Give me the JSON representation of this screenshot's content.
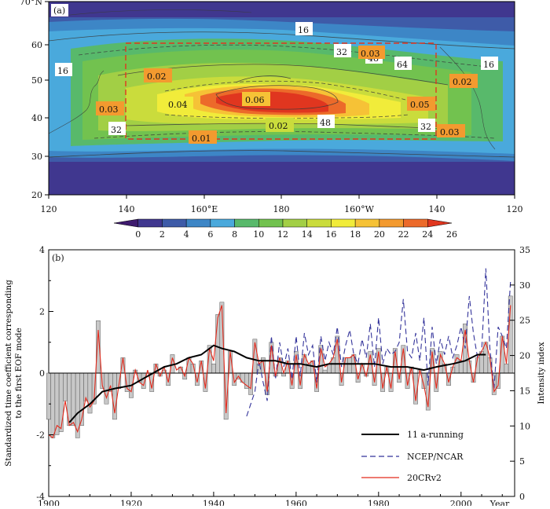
{
  "panel_a": {
    "label": "(a)",
    "lat_labels": [
      "70°N",
      "60",
      "50",
      "40",
      "30",
      "20"
    ],
    "lon_labels": [
      "120",
      "140",
      "160°E",
      "180",
      "160°W",
      "140",
      "120"
    ],
    "colorbar_ticks": [
      "0",
      "2",
      "4",
      "6",
      "8",
      "10",
      "12",
      "14",
      "16",
      "18",
      "20",
      "22",
      "24",
      "26"
    ],
    "contour_labels": [
      "16",
      "32",
      "48",
      "64",
      "16",
      "16",
      "48",
      "32",
      "32"
    ],
    "eof_labels": [
      "0.03",
      "0.02",
      "0.03",
      "0.04",
      "0.06",
      "0.02",
      "0.01",
      "0.05",
      "0.02",
      "0.03"
    ]
  },
  "chart_data": {
    "type": "line",
    "title": "",
    "panel_label": "(b)",
    "xlabel": "Year",
    "ylabel_left": "Standardized time coefficient corresponding to the first EOF mode",
    "ylabel_right": "Intensity index",
    "xlim": [
      1900,
      2013
    ],
    "ylim": [
      -4,
      4
    ],
    "ylim_right": [
      0,
      35
    ],
    "x_ticks": [
      "1900",
      "1920",
      "1940",
      "1960",
      "1980",
      "2000"
    ],
    "y_ticks": [
      "-4",
      "-2",
      "0",
      "2",
      "4"
    ],
    "y_right_ticks": [
      "0",
      "5",
      "10",
      "15",
      "20",
      "25",
      "30",
      "35"
    ],
    "x_unit_label": "Year",
    "legend_position": "bottom-right",
    "bar_series": {
      "name": "Standardized time coefficient",
      "x": [
        1900,
        1901,
        1902,
        1903,
        1904,
        1905,
        1906,
        1907,
        1908,
        1909,
        1910,
        1911,
        1912,
        1913,
        1914,
        1915,
        1916,
        1917,
        1918,
        1919,
        1920,
        1921,
        1922,
        1923,
        1924,
        1925,
        1926,
        1927,
        1928,
        1929,
        1930,
        1931,
        1932,
        1933,
        1934,
        1935,
        1936,
        1937,
        1938,
        1939,
        1940,
        1941,
        1942,
        1943,
        1944,
        1945,
        1946,
        1947,
        1948,
        1949,
        1950,
        1951,
        1952,
        1953,
        1954,
        1955,
        1956,
        1957,
        1958,
        1959,
        1960,
        1961,
        1962,
        1963,
        1964,
        1965,
        1966,
        1967,
        1968,
        1969,
        1970,
        1971,
        1972,
        1973,
        1974,
        1975,
        1976,
        1977,
        1978,
        1979,
        1980,
        1981,
        1982,
        1983,
        1984,
        1985,
        1986,
        1987,
        1988,
        1989,
        1990,
        1991,
        1992,
        1993,
        1994,
        1995,
        1996,
        1997,
        1998,
        1999,
        2000,
        2001,
        2002,
        2003,
        2004,
        2005,
        2006,
        2007,
        2008,
        2009,
        2010
      ],
      "values": [
        -1.5,
        -2.1,
        -2.0,
        -1.9,
        -0.9,
        -1.7,
        -1.7,
        -2.1,
        -1.7,
        -0.9,
        -1.3,
        -1.0,
        1.7,
        -0.5,
        -1.0,
        -0.6,
        -1.5,
        -0.5,
        0.5,
        -0.6,
        -0.8,
        0.1,
        -0.3,
        -0.5,
        0.0,
        -0.6,
        0.3,
        -0.1,
        0.1,
        -0.4,
        0.6,
        0.0,
        0.2,
        -0.2,
        0.5,
        0.3,
        -0.4,
        0.4,
        -0.6,
        0.9,
        0.3,
        1.9,
        2.3,
        -1.5,
        0.7,
        -0.4,
        -0.2,
        -0.3,
        -0.5,
        -0.7,
        1.1,
        0.3,
        0.5,
        -0.7,
        1.0,
        -0.1,
        0.5,
        -0.1,
        0.4,
        -0.5,
        0.7,
        -0.5,
        0.6,
        0.3,
        0.4,
        -0.6,
        0.9,
        0.1,
        0.3,
        0.5,
        1.2,
        -0.4,
        0.5,
        0.5,
        0.6,
        -0.3,
        0.3,
        -0.1,
        0.7,
        -0.4,
        0.8,
        -0.6,
        0.2,
        -0.6,
        0.8,
        -0.3,
        0.9,
        -0.5,
        0.2,
        -1.0,
        0.1,
        -0.5,
        -1.2,
        0.8,
        -0.6,
        0.7,
        0.3,
        -0.4,
        0.2,
        0.6,
        0.4,
        1.6,
        0.4,
        -0.3,
        0.5,
        0.7,
        1.0,
        0.5,
        -0.7,
        -0.5,
        1.2
      ],
      "extra_x": [
        2011,
        2012
      ],
      "extra_values": [
        0.3,
        2.5
      ]
    },
    "series": [
      {
        "name": "11 a-running",
        "color": "#000000",
        "style": "solid",
        "x": [
          1905,
          1907,
          1910,
          1913,
          1916,
          1920,
          1924,
          1928,
          1931,
          1934,
          1937,
          1940,
          1942,
          1945,
          1948,
          1951,
          1955,
          1958,
          1961,
          1965,
          1968,
          1971,
          1975,
          1979,
          1983,
          1987,
          1991,
          1994,
          1998,
          2001,
          2004,
          2006
        ],
        "values": [
          -1.6,
          -1.3,
          -1.0,
          -0.6,
          -0.5,
          -0.4,
          -0.1,
          0.2,
          0.3,
          0.5,
          0.6,
          0.9,
          0.8,
          0.7,
          0.5,
          0.4,
          0.4,
          0.3,
          0.3,
          0.2,
          0.3,
          0.3,
          0.3,
          0.3,
          0.2,
          0.2,
          0.1,
          0.2,
          0.3,
          0.4,
          0.6,
          0.6
        ]
      },
      {
        "name": "NCEP/NCAR",
        "color": "#33339a",
        "style": "dashed",
        "x": [
          1948,
          1950,
          1951,
          1952,
          1953,
          1954,
          1955,
          1956,
          1957,
          1958,
          1959,
          1960,
          1961,
          1962,
          1963,
          1964,
          1965,
          1966,
          1967,
          1968,
          1969,
          1970,
          1971,
          1972,
          1973,
          1974,
          1975,
          1976,
          1977,
          1978,
          1979,
          1980,
          1981,
          1982,
          1983,
          1984,
          1985,
          1986,
          1987,
          1988,
          1989,
          1990,
          1991,
          1992,
          1993,
          1994,
          1995,
          1996,
          1997,
          1998,
          1999,
          2000,
          2001,
          2002,
          2003,
          2004,
          2005,
          2006,
          2007,
          2008,
          2009,
          2010,
          2011,
          2012
        ],
        "values": [
          -1.4,
          -0.6,
          0.4,
          -0.3,
          -0.9,
          1.2,
          -0.2,
          1.0,
          0.2,
          0.8,
          -0.2,
          1.2,
          -0.1,
          1.3,
          0.6,
          0.9,
          -0.3,
          1.2,
          0.4,
          1.0,
          0.6,
          1.5,
          0.2,
          0.9,
          1.4,
          0.6,
          0.3,
          1.1,
          0.5,
          1.6,
          0.2,
          1.8,
          0.3,
          0.8,
          0.6,
          0.7,
          1.0,
          2.4,
          0.7,
          0.5,
          1.3,
          0.4,
          1.8,
          -0.4,
          1.5,
          0.3,
          1.1,
          0.6,
          1.2,
          0.5,
          0.9,
          1.5,
          0.8,
          2.5,
          1.3,
          0.5,
          0.7,
          3.4,
          0.8,
          -0.5,
          1.5,
          1.2,
          0.8,
          3.0
        ]
      },
      {
        "name": "20CRv2",
        "color": "#e32a1c",
        "style": "solid",
        "x": [
          1900,
          1901,
          1902,
          1903,
          1904,
          1905,
          1906,
          1907,
          1908,
          1909,
          1910,
          1911,
          1912,
          1913,
          1914,
          1915,
          1916,
          1917,
          1918,
          1919,
          1920,
          1921,
          1922,
          1923,
          1924,
          1925,
          1926,
          1927,
          1928,
          1929,
          1930,
          1931,
          1932,
          1933,
          1934,
          1935,
          1936,
          1937,
          1938,
          1939,
          1940,
          1941,
          1942,
          1943,
          1944,
          1945,
          1946,
          1947,
          1948,
          1949,
          1950,
          1951,
          1952,
          1953,
          1954,
          1955,
          1956,
          1957,
          1958,
          1959,
          1960,
          1961,
          1962,
          1963,
          1964,
          1965,
          1966,
          1967,
          1968,
          1969,
          1970,
          1971,
          1972,
          1973,
          1974,
          1975,
          1976,
          1977,
          1978,
          1979,
          1980,
          1981,
          1982,
          1983,
          1984,
          1985,
          1986,
          1987,
          1988,
          1989,
          1990,
          1991,
          1992,
          1993,
          1994,
          1995,
          1996,
          1997,
          1998,
          1999,
          2000,
          2001,
          2002,
          2003,
          2004,
          2005,
          2006,
          2007,
          2008,
          2009,
          2010,
          2011,
          2012
        ],
        "values": [
          -2.0,
          -2.1,
          -1.7,
          -1.8,
          -0.9,
          -1.7,
          -1.6,
          -1.9,
          -1.5,
          -0.8,
          -1.1,
          -0.9,
          1.4,
          -0.4,
          -0.8,
          -0.4,
          -1.3,
          -0.4,
          0.5,
          -0.5,
          -0.6,
          0.1,
          -0.3,
          -0.4,
          0.1,
          -0.5,
          0.3,
          -0.1,
          0.2,
          -0.3,
          0.5,
          0.1,
          0.2,
          -0.1,
          0.5,
          0.3,
          -0.3,
          0.4,
          -0.5,
          0.8,
          0.4,
          1.8,
          2.2,
          -1.3,
          0.7,
          -0.3,
          -0.1,
          -0.3,
          -0.4,
          -0.5,
          1.0,
          0.3,
          0.4,
          -0.6,
          0.9,
          -0.1,
          0.5,
          0.0,
          0.4,
          -0.4,
          0.6,
          -0.4,
          0.6,
          0.3,
          0.4,
          -0.5,
          0.8,
          0.2,
          0.3,
          0.5,
          1.1,
          -0.3,
          0.5,
          0.5,
          0.6,
          -0.2,
          0.3,
          -0.1,
          0.6,
          -0.3,
          0.7,
          -0.5,
          0.2,
          -0.5,
          0.7,
          -0.2,
          0.8,
          -0.4,
          0.2,
          -0.9,
          0.1,
          -0.4,
          -1.1,
          0.7,
          -0.5,
          0.6,
          0.3,
          -0.3,
          0.2,
          0.5,
          0.4,
          1.4,
          0.4,
          -0.3,
          0.5,
          0.7,
          1.0,
          0.5,
          -0.6,
          -0.4,
          1.2,
          0.3,
          2.2
        ]
      }
    ]
  },
  "colors": {
    "colorbar": [
      "#3e1a6e",
      "#40378f",
      "#3e5ba8",
      "#3d86c6",
      "#4aa9dc",
      "#58b96b",
      "#72c24f",
      "#a2cf45",
      "#cadc3c",
      "#f1ec3a",
      "#f6c236",
      "#f39a2f",
      "#ec6a2a",
      "#e0361f"
    ]
  }
}
